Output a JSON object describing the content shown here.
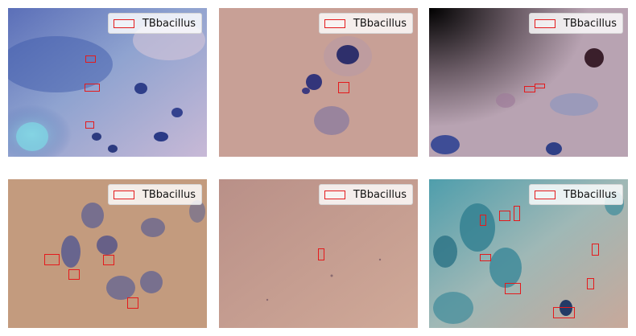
{
  "legend_label": "TBbacillus",
  "box_color": "#e41a1c",
  "panels": [
    {
      "name": "panel-1",
      "legend": "TBbacillus"
    },
    {
      "name": "panel-2",
      "legend": "TBbacillus"
    },
    {
      "name": "panel-3",
      "legend": "TBbacillus"
    },
    {
      "name": "panel-4",
      "legend": "TBbacillus"
    },
    {
      "name": "panel-5",
      "legend": "TBbacillus"
    },
    {
      "name": "panel-6",
      "legend": "TBbacillus"
    }
  ]
}
